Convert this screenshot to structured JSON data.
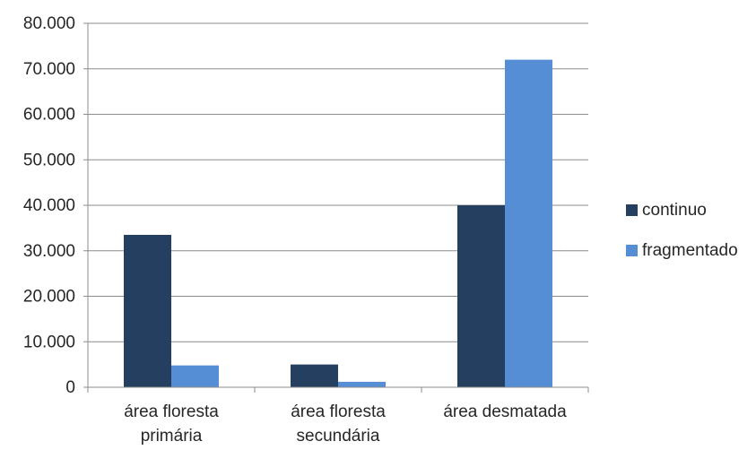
{
  "chart_data": {
    "type": "bar",
    "categories": [
      [
        "área floresta",
        "primária"
      ],
      [
        "área floresta",
        "secundária"
      ],
      [
        "área desmatada"
      ]
    ],
    "series": [
      {
        "name": "continuo",
        "color": "#243F60",
        "values": [
          33500,
          5000,
          40000
        ]
      },
      {
        "name": "fragmentado",
        "color": "#558ED5",
        "values": [
          4800,
          1200,
          72000
        ]
      }
    ],
    "ylim": [
      0,
      80000
    ],
    "yticks": [
      0,
      10000,
      20000,
      30000,
      40000,
      50000,
      60000,
      70000,
      80000
    ],
    "ytick_labels": [
      "0",
      "10.000",
      "20.000",
      "30.000",
      "40.000",
      "50.000",
      "60.000",
      "70.000",
      "80.000"
    ],
    "grid": true,
    "legend_position": "right",
    "title": "",
    "xlabel": "",
    "ylabel": ""
  }
}
